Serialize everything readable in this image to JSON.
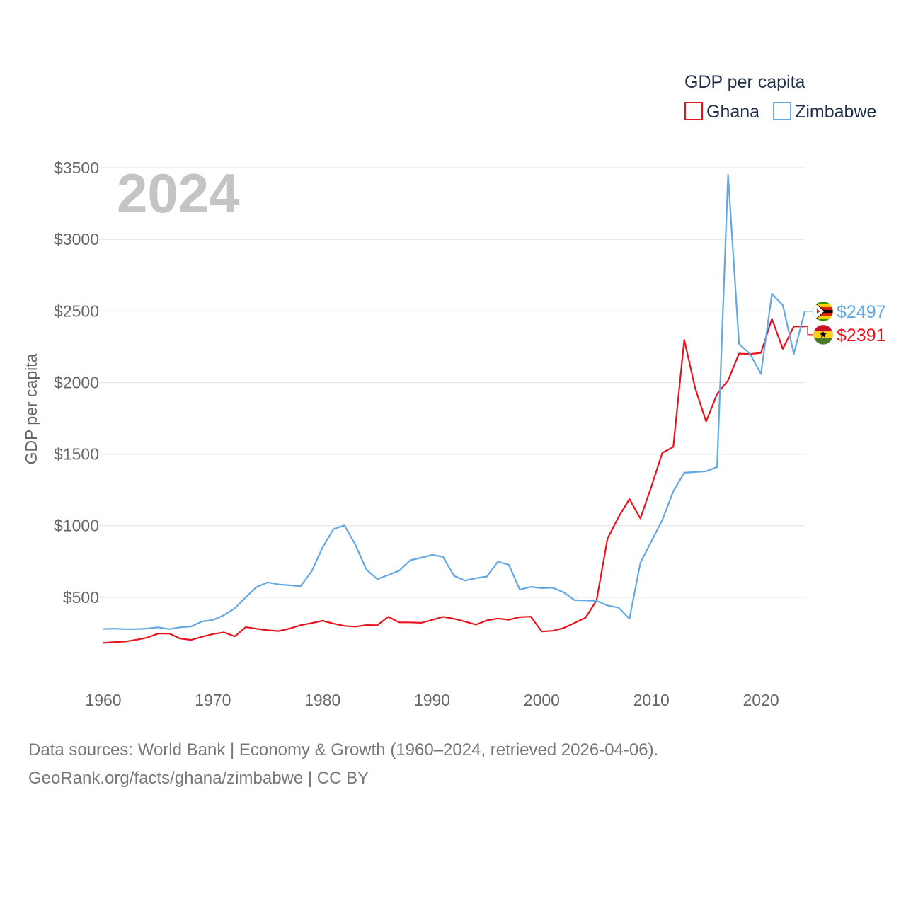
{
  "chart_data": {
    "type": "line",
    "title": "GDP per capita",
    "year_label": "2024",
    "ylabel": "GDP per capita",
    "xlabel": "",
    "xlim": [
      1960,
      2024
    ],
    "ylim": [
      0,
      3500
    ],
    "x_ticks": [
      1960,
      1970,
      1980,
      1990,
      2000,
      2010,
      2020
    ],
    "y_ticks": [
      500,
      1000,
      1500,
      2000,
      2500,
      3000,
      3500
    ],
    "y_tick_labels": [
      "$500",
      "$1000",
      "$1500",
      "$2000",
      "$2500",
      "$3000",
      "$3500"
    ],
    "x_tick_labels": [
      "1960",
      "1970",
      "1980",
      "1990",
      "2000",
      "2010",
      "2020"
    ],
    "legend_title": "GDP per capita",
    "legend_position": "top-right",
    "grid": true,
    "x": [
      1960,
      1961,
      1962,
      1963,
      1964,
      1965,
      1966,
      1967,
      1968,
      1969,
      1970,
      1971,
      1972,
      1973,
      1974,
      1975,
      1976,
      1977,
      1978,
      1979,
      1980,
      1981,
      1982,
      1983,
      1984,
      1985,
      1986,
      1987,
      1988,
      1989,
      1990,
      1991,
      1992,
      1993,
      1994,
      1995,
      1996,
      1997,
      1998,
      1999,
      2000,
      2001,
      2002,
      2003,
      2004,
      2005,
      2006,
      2007,
      2008,
      2009,
      2010,
      2011,
      2012,
      2013,
      2014,
      2015,
      2016,
      2017,
      2018,
      2019,
      2020,
      2021,
      2022,
      2023,
      2024
    ],
    "series": [
      {
        "name": "Ghana",
        "color": "#e8131b",
        "end_label": "$2391",
        "flag": "ghana-flag",
        "values": [
          181,
          187,
          191,
          203,
          218,
          246,
          247,
          212,
          202,
          224,
          243,
          255,
          227,
          292,
          280,
          270,
          264,
          282,
          305,
          320,
          336,
          316,
          300,
          295,
          306,
          305,
          364,
          325,
          325,
          322,
          342,
          364,
          350,
          330,
          309,
          339,
          352,
          343,
          362,
          365,
          261,
          266,
          285,
          321,
          358,
          478,
          910,
          1060,
          1186,
          1051,
          1272,
          1509,
          1550,
          2298,
          1960,
          1728,
          1920,
          2015,
          2202,
          2199,
          2207,
          2445,
          2235,
          2392,
          2391
        ]
      },
      {
        "name": "Zimbabwe",
        "color": "#62a8e5",
        "end_label": "$2497",
        "flag": "zimbabwe-flag",
        "values": [
          279,
          281,
          278,
          278,
          282,
          290,
          278,
          290,
          296,
          331,
          341,
          375,
          423,
          501,
          573,
          604,
          590,
          584,
          578,
          680,
          848,
          977,
          1002,
          867,
          693,
          627,
          655,
          686,
          759,
          776,
          796,
          782,
          649,
          617,
          634,
          645,
          749,
          727,
          553,
          573,
          564,
          567,
          535,
          480,
          478,
          475,
          443,
          428,
          350,
          740,
          890,
          1040,
          1240,
          1370,
          1375,
          1380,
          1410,
          3450,
          2270,
          2200,
          2060,
          2620,
          2540,
          2200,
          2497
        ]
      }
    ]
  },
  "footer": {
    "line1": "Data sources: World Bank | Economy & Growth (1960–2024, retrieved 2026-04-06).",
    "line2": "GeoRank.org/facts/ghana/zimbabwe | CC BY"
  }
}
